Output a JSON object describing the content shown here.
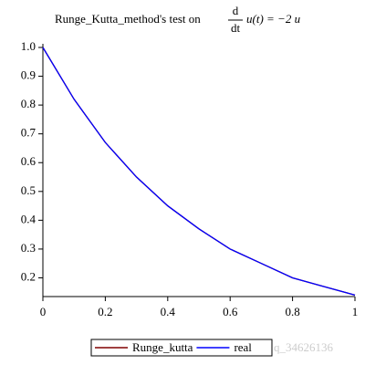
{
  "chart_data": {
    "type": "line",
    "title": {
      "prefix": "Runge_Kutta_method's test on",
      "numerator": "d",
      "denominator": "dt",
      "suffix": "u(t) = −2 u"
    },
    "x": [
      0,
      0.1,
      0.2,
      0.3,
      0.4,
      0.5,
      0.6,
      0.7,
      0.8,
      0.9,
      1
    ],
    "series": [
      {
        "name": "Runge_kutta",
        "color": "#800000",
        "values": [
          1,
          0.82,
          0.67,
          0.55,
          0.45,
          0.37,
          0.3,
          0.25,
          0.2,
          0.17,
          0.14
        ]
      },
      {
        "name": "real",
        "color": "#0000ff",
        "values": [
          1,
          0.82,
          0.67,
          0.55,
          0.45,
          0.37,
          0.3,
          0.25,
          0.2,
          0.17,
          0.14
        ]
      }
    ],
    "xlim": [
      0,
      1
    ],
    "xticks": [
      0,
      0.2,
      0.4,
      0.6,
      0.8,
      1
    ],
    "ylim": [
      0.135,
      1
    ],
    "yticks": [
      0.2,
      0.3,
      0.4,
      0.5,
      0.6,
      0.7,
      0.8,
      0.9,
      {
        "value": 1,
        "label": "1.0"
      }
    ],
    "legend": "bottom",
    "watermark": "q_34626136"
  }
}
